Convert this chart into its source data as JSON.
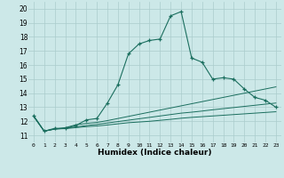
{
  "xlabel": "Humidex (Indice chaleur)",
  "ylabel": "",
  "xlim": [
    -0.5,
    23.5
  ],
  "ylim": [
    10.5,
    20.5
  ],
  "yticks": [
    11,
    12,
    13,
    14,
    15,
    16,
    17,
    18,
    19,
    20
  ],
  "xticks": [
    0,
    1,
    2,
    3,
    4,
    5,
    6,
    7,
    8,
    9,
    10,
    11,
    12,
    13,
    14,
    15,
    16,
    17,
    18,
    19,
    20,
    21,
    22,
    23
  ],
  "bg_color": "#cce8e8",
  "grid_color": "#aacccc",
  "line_color": "#1a6e5e",
  "lines": [
    {
      "x": [
        0,
        1,
        2,
        3,
        4,
        5,
        6,
        7,
        8,
        9,
        10,
        11,
        12,
        13,
        14,
        15,
        16,
        17,
        18,
        19,
        20,
        21,
        22,
        23
      ],
      "y": [
        12.4,
        11.3,
        11.5,
        11.5,
        11.7,
        12.1,
        12.2,
        13.3,
        14.6,
        16.8,
        17.5,
        17.75,
        17.85,
        19.5,
        19.8,
        16.5,
        16.2,
        15.0,
        15.1,
        15.0,
        14.3,
        13.7,
        13.5,
        13.0
      ],
      "marker": true
    },
    {
      "x": [
        0,
        1,
        2,
        3,
        4,
        5,
        6,
        7,
        8,
        9,
        10,
        11,
        12,
        13,
        14,
        15,
        16,
        17,
        18,
        19,
        20,
        21,
        22,
        23
      ],
      "y": [
        12.35,
        11.3,
        11.45,
        11.55,
        11.75,
        11.85,
        11.92,
        12.05,
        12.2,
        12.35,
        12.5,
        12.65,
        12.8,
        12.95,
        13.1,
        13.25,
        13.4,
        13.55,
        13.7,
        13.85,
        14.0,
        14.15,
        14.3,
        14.45
      ],
      "marker": false
    },
    {
      "x": [
        0,
        1,
        2,
        3,
        4,
        5,
        6,
        7,
        8,
        9,
        10,
        11,
        12,
        13,
        14,
        15,
        16,
        17,
        18,
        19,
        20,
        21,
        22,
        23
      ],
      "y": [
        12.35,
        11.3,
        11.45,
        11.5,
        11.6,
        11.7,
        11.78,
        11.88,
        11.98,
        12.08,
        12.18,
        12.28,
        12.38,
        12.48,
        12.58,
        12.65,
        12.73,
        12.82,
        12.9,
        12.98,
        13.06,
        13.14,
        13.22,
        13.3
      ],
      "marker": false
    },
    {
      "x": [
        0,
        1,
        2,
        3,
        4,
        5,
        6,
        7,
        8,
        9,
        10,
        11,
        12,
        13,
        14,
        15,
        16,
        17,
        18,
        19,
        20,
        21,
        22,
        23
      ],
      "y": [
        12.35,
        11.3,
        11.45,
        11.48,
        11.55,
        11.62,
        11.67,
        11.74,
        11.82,
        11.9,
        11.95,
        12.0,
        12.07,
        12.14,
        12.22,
        12.28,
        12.33,
        12.38,
        12.43,
        12.48,
        12.53,
        12.58,
        12.63,
        12.68
      ],
      "marker": false
    }
  ]
}
